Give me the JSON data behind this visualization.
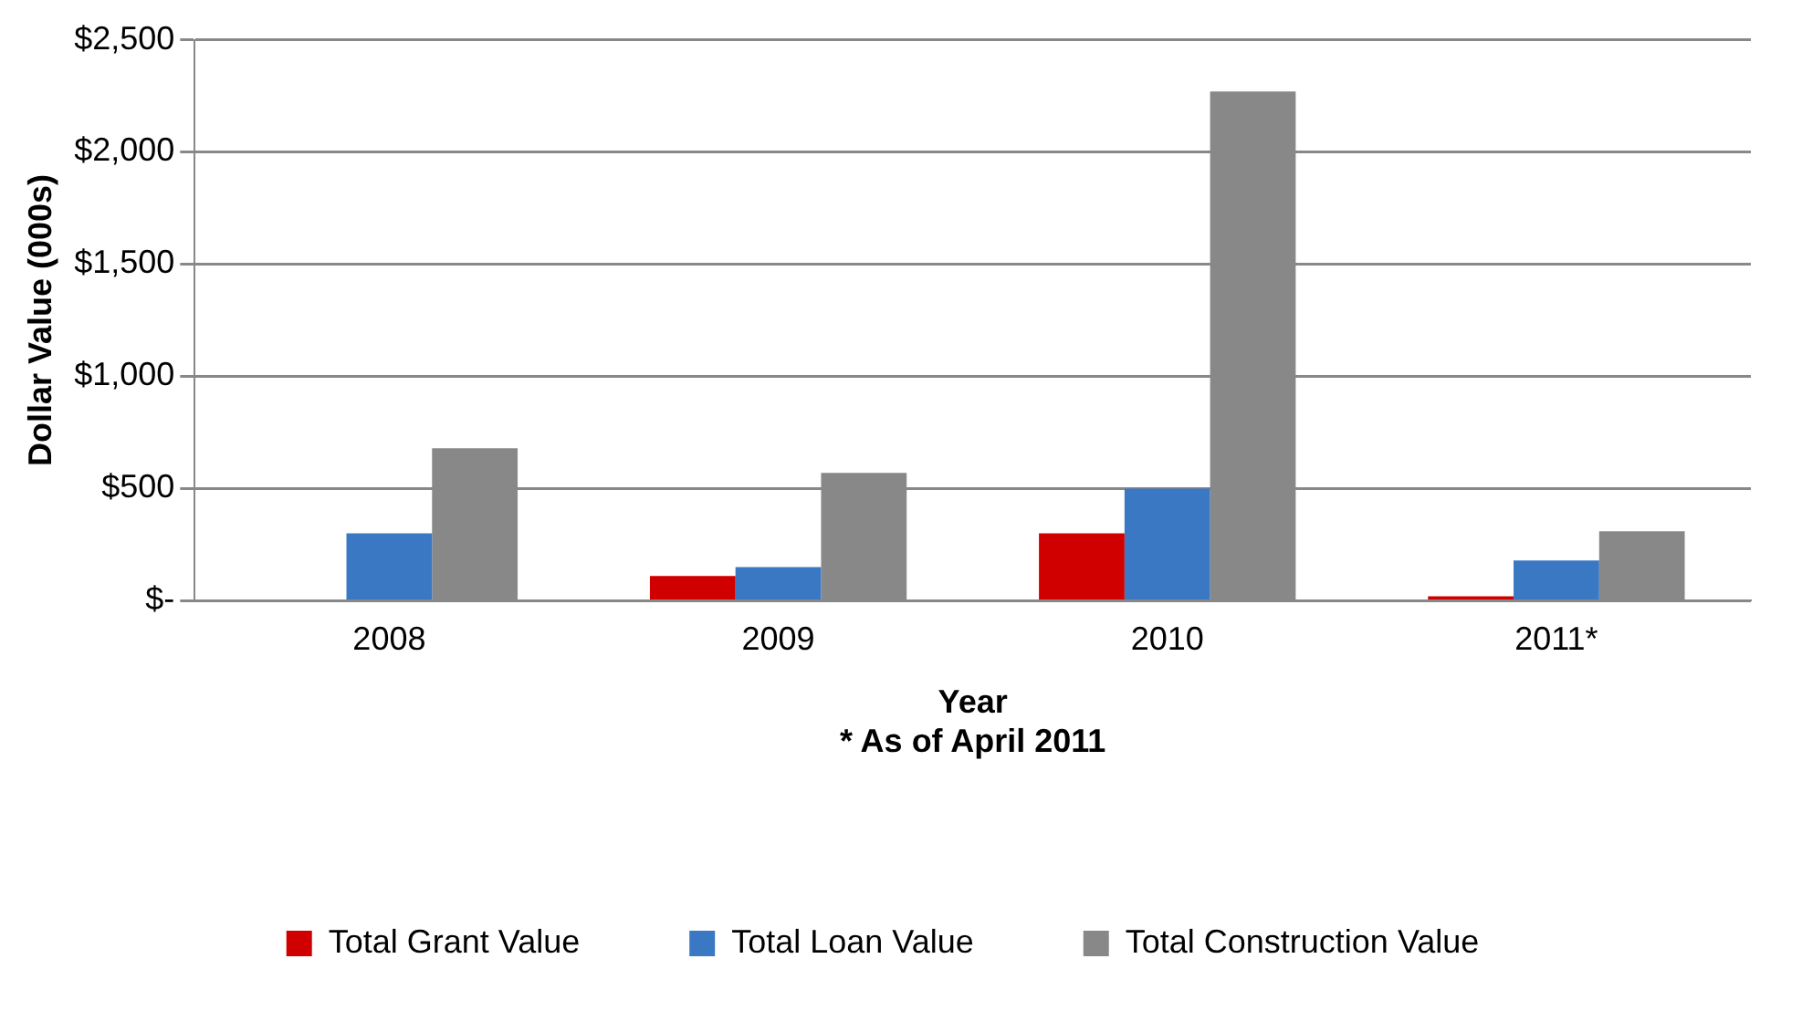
{
  "chart_data": {
    "type": "bar",
    "xlabel": "Year",
    "ylabel": "Dollar Value (000s)",
    "annotations": [
      "* As of April 2011"
    ],
    "categories": [
      "2008",
      "2009",
      "2010",
      "2011*"
    ],
    "series": [
      {
        "name": "Total Grant Value",
        "color": "#d00000",
        "values": [
          0,
          110,
          300,
          20
        ]
      },
      {
        "name": "Total Loan Value",
        "color": "#3a78c4",
        "values": [
          300,
          150,
          500,
          180
        ]
      },
      {
        "name": "Total Construction Value",
        "color": "#888888",
        "values": [
          680,
          570,
          2270,
          310
        ]
      }
    ],
    "ylim": [
      0,
      2500
    ],
    "yticks": [
      {
        "value": 0,
        "label": "$-"
      },
      {
        "value": 500,
        "label": "$500"
      },
      {
        "value": 1000,
        "label": "$1,000"
      },
      {
        "value": 1500,
        "label": "$1,500"
      },
      {
        "value": 2000,
        "label": "$2,000"
      },
      {
        "value": 2500,
        "label": "$2,500"
      }
    ],
    "grid": "y",
    "legend": "bottom"
  }
}
